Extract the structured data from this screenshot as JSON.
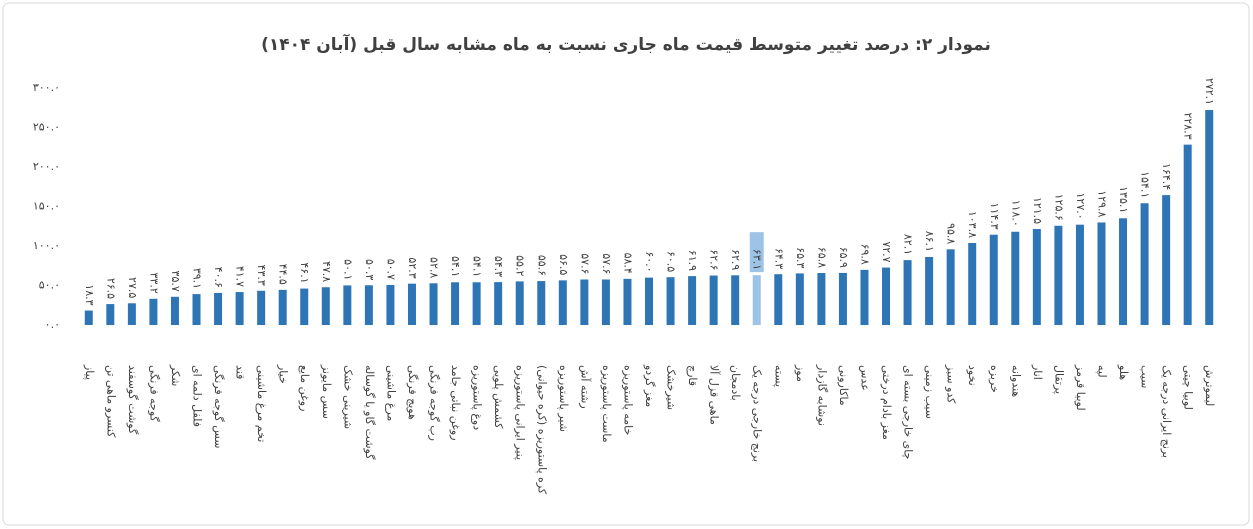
{
  "chart_data": {
    "type": "bar",
    "title": "نمودار ۲: درصد تغییر متوسط قیمت ماه جاری نسبت به ماه مشابه سال قبل (آبان ۱۴۰۴)",
    "categories": [
      "پیاز",
      "کنسرو ماهی تن",
      "گوشت گوسفند",
      "گوجه فرنگی",
      "شکر",
      "فلفل دلمه ای",
      "سس گوجه فرنگی",
      "قند",
      "تخم مرغ ماشینی",
      "خیار",
      "روغن مایع",
      "سس مایونز",
      "شیرینی خشک",
      "گوشت گاو یا گوساله",
      "مرغ ماشینی",
      "هویج فرنگی",
      "رب گوجه فرنگی",
      "روغن نباتی جامد",
      "دوغ پاستوریزه",
      "کشمش پلویی",
      "پنیر ایرانی پاستوریزه",
      "کره پاستوریزه (کره حیوانی)",
      "شیر پاستوریزه",
      "رشته آش",
      "ماست پاستوریزه",
      "خامه پاستوریزه",
      "مغز گردو",
      "شیرخشک",
      "قارچ",
      "ماهی قزل آلا",
      "بادمجان",
      "برنج خارجی درجه یک",
      "پسته",
      "موز",
      "نوشابه گازدار",
      "ماکارونی",
      "عدس",
      "مغز بادام درختی",
      "چای خارجی بسته ای",
      "سیب زمینی",
      "کدو سبز",
      "نخود",
      "خربزه",
      "هندوانه",
      "انار",
      "پرتقال",
      "لوبیا قرمز",
      "لپه",
      "هلو",
      "سیب",
      "برنج ایرانی درجه یک",
      "لوبیا چیتی",
      "لیموترش"
    ],
    "values": [
      18.3,
      26.5,
      27.5,
      33.2,
      35.7,
      39.1,
      40.6,
      41.7,
      43.3,
      44.5,
      46.1,
      47.8,
      50.1,
      50.3,
      50.7,
      52.3,
      52.8,
      54.1,
      54.1,
      54.3,
      55.2,
      55.6,
      56.5,
      57.6,
      57.6,
      58.4,
      60.0,
      60.5,
      61.9,
      62.6,
      62.9,
      63.1,
      64.3,
      65.3,
      65.8,
      65.9,
      69.8,
      72.7,
      82.1,
      86.1,
      95.8,
      103.8,
      114.3,
      118.0,
      121.5,
      125.6,
      127.0,
      129.8,
      135.1,
      154.1,
      164.4,
      228.3,
      272.1
    ],
    "value_labels": [
      "۱۸.۳",
      "۲۶.۵",
      "۲۷.۵",
      "۳۳.۲",
      "۳۵.۷",
      "۳۹.۱",
      "۴۰.۶",
      "۴۱.۷",
      "۴۳.۳",
      "۴۴.۵",
      "۴۶.۱",
      "۴۷.۸",
      "۵۰.۱",
      "۵۰.۳",
      "۵۰.۷",
      "۵۲.۳",
      "۵۲.۸",
      "۵۴.۱",
      "۵۴.۱",
      "۵۴.۳",
      "۵۵.۲",
      "۵۵.۶",
      "۵۶.۵",
      "۵۷.۶",
      "۵۷.۶",
      "۵۸.۴",
      "۶۰.۰",
      "۶۰.۵",
      "۶۱.۹",
      "۶۲.۶",
      "۶۲.۹",
      "۶۳.۱",
      "۶۴.۳",
      "۶۵.۳",
      "۶۵.۸",
      "۶۵.۹",
      "۶۹.۸",
      "۷۲.۷",
      "۸۲.۱",
      "۸۶.۱",
      "۹۵.۸",
      "۱۰۳.۸",
      "۱۱۴.۳",
      "۱۱۸.۰",
      "۱۲۱.۵",
      "۱۲۵.۶",
      "۱۲۷.۰",
      "۱۲۹.۸",
      "۱۳۵.۱",
      "۱۵۴.۱",
      "۱۶۴.۴",
      "۲۲۸.۳",
      "۲۷۲.۱"
    ],
    "colors": [
      "#2e75b6",
      "#2e75b6",
      "#2e75b6",
      "#2e75b6",
      "#2e75b6",
      "#2e75b6",
      "#2e75b6",
      "#2e75b6",
      "#2e75b6",
      "#2e75b6",
      "#2e75b6",
      "#2e75b6",
      "#2e75b6",
      "#2e75b6",
      "#2e75b6",
      "#2e75b6",
      "#2e75b6",
      "#2e75b6",
      "#2e75b6",
      "#2e75b6",
      "#2e75b6",
      "#2e75b6",
      "#2e75b6",
      "#2e75b6",
      "#2e75b6",
      "#2e75b6",
      "#2e75b6",
      "#2e75b6",
      "#2e75b6",
      "#2e75b6",
      "#2e75b6",
      "#9dc3e6",
      "#2e75b6",
      "#2e75b6",
      "#2e75b6",
      "#2e75b6",
      "#2e75b6",
      "#2e75b6",
      "#2e75b6",
      "#2e75b6",
      "#2e75b6",
      "#2e75b6",
      "#2e75b6",
      "#2e75b6",
      "#2e75b6",
      "#2e75b6",
      "#2e75b6",
      "#2e75b6",
      "#2e75b6",
      "#2e75b6",
      "#2e75b6",
      "#2e75b6",
      "#2e75b6"
    ],
    "ylim": [
      0,
      300
    ],
    "yticks": [
      {
        "value": 0,
        "label": "۰.۰"
      },
      {
        "value": 50,
        "label": "۵۰.۰"
      },
      {
        "value": 100,
        "label": "۱۰۰.۰"
      },
      {
        "value": 150,
        "label": "۱۵۰.۰"
      },
      {
        "value": 200,
        "label": "۲۰۰.۰"
      },
      {
        "value": 250,
        "label": "۲۵۰.۰"
      },
      {
        "value": 300,
        "label": "۳۰۰.۰"
      }
    ],
    "grid": false
  }
}
